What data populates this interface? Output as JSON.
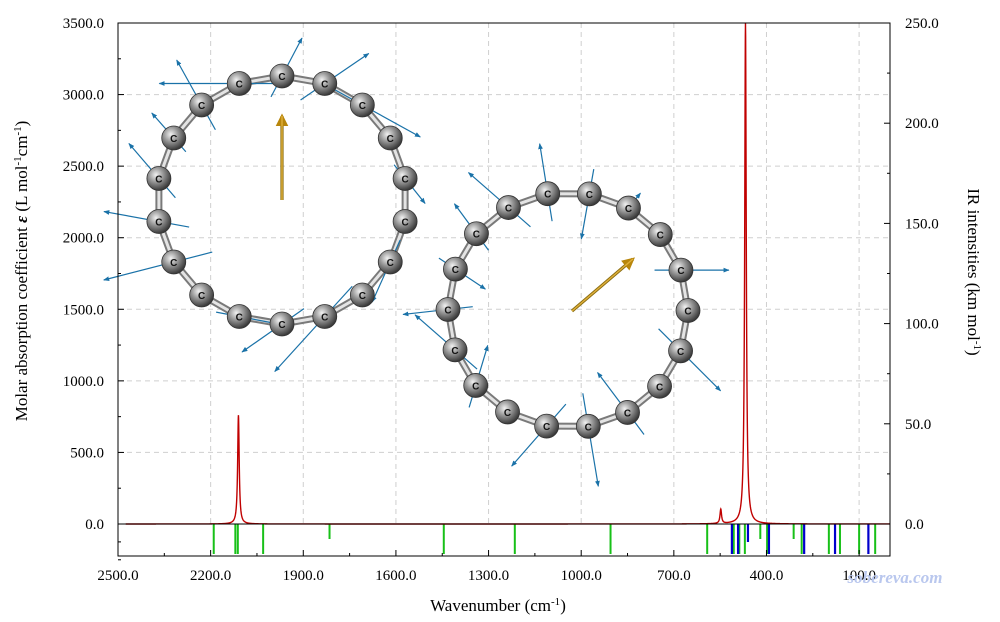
{
  "chart_data": {
    "type": "line",
    "xlabel": "Wavenumber (cm",
    "xlabel_sup": "-1",
    "xlabel_end": ")",
    "ylabel_left": "Molar absorption coefficient",
    "ylabel_left_symbol": "ε",
    "ylabel_left_units": "(L mol",
    "ylabel_left_sup1": "-1",
    "ylabel_left_mid": "cm",
    "ylabel_left_sup2": "-1",
    "ylabel_left_end": ")",
    "ylabel_right": "IR intensities (km mol",
    "ylabel_right_sup": "-1",
    "ylabel_right_end": ")",
    "xlim": [
      2500,
      0
    ],
    "ylim_left": [
      0,
      3500
    ],
    "ylim_right": [
      0,
      250
    ],
    "x_ticks": [
      "2500.0",
      "2200.0",
      "1900.0",
      "1600.0",
      "1300.0",
      "1000.0",
      "700.0",
      "400.0",
      "100.0"
    ],
    "y_left_ticks": [
      "0.0",
      "500.0",
      "1000.0",
      "1500.0",
      "2000.0",
      "2500.0",
      "3000.0",
      "3500.0"
    ],
    "y_right_ticks": [
      "0.0",
      "50.0",
      "100.0",
      "150.0",
      "200.0",
      "250.0"
    ],
    "grid": true,
    "watermark": "sobereva.com",
    "atom_symbol": "C",
    "spectrum_peaks": [
      {
        "x": 2110,
        "height": 760,
        "width": 3
      },
      {
        "x": 548,
        "height": 100,
        "width": 3
      },
      {
        "x": 468,
        "height": 3500,
        "width": 3
      }
    ],
    "colors": {
      "spectrum": "#c00000",
      "sticks_green": "#18c018",
      "sticks_blue": "#0000cc",
      "vector": "#1a72a8",
      "moment": "#b8860b"
    },
    "sticks_green": [
      {
        "x": 2190,
        "depth": 1.0
      },
      {
        "x": 2120,
        "depth": 1.0
      },
      {
        "x": 2112,
        "depth": 1.0
      },
      {
        "x": 2030,
        "depth": 1.0
      },
      {
        "x": 1815,
        "depth": 0.5
      },
      {
        "x": 1445,
        "depth": 1.0
      },
      {
        "x": 1215,
        "depth": 1.0
      },
      {
        "x": 905,
        "depth": 1.0
      },
      {
        "x": 592,
        "depth": 1.0
      },
      {
        "x": 506,
        "depth": 1.0
      },
      {
        "x": 488,
        "depth": 1.0
      },
      {
        "x": 470,
        "depth": 1.0
      },
      {
        "x": 420,
        "depth": 0.5
      },
      {
        "x": 398,
        "depth": 1.0
      },
      {
        "x": 312,
        "depth": 0.5
      },
      {
        "x": 286,
        "depth": 1.0
      },
      {
        "x": 198,
        "depth": 1.0
      },
      {
        "x": 162,
        "depth": 1.0
      },
      {
        "x": 100,
        "depth": 1.0
      },
      {
        "x": 48,
        "depth": 1.0
      }
    ],
    "sticks_blue": [
      {
        "x": 512,
        "depth": 1.0
      },
      {
        "x": 492,
        "depth": 1.0
      },
      {
        "x": 460,
        "depth": 0.6
      },
      {
        "x": 392,
        "depth": 1.0
      },
      {
        "x": 278,
        "depth": 1.0
      },
      {
        "x": 178,
        "depth": 1.0
      },
      {
        "x": 70,
        "depth": 1.0
      }
    ]
  }
}
